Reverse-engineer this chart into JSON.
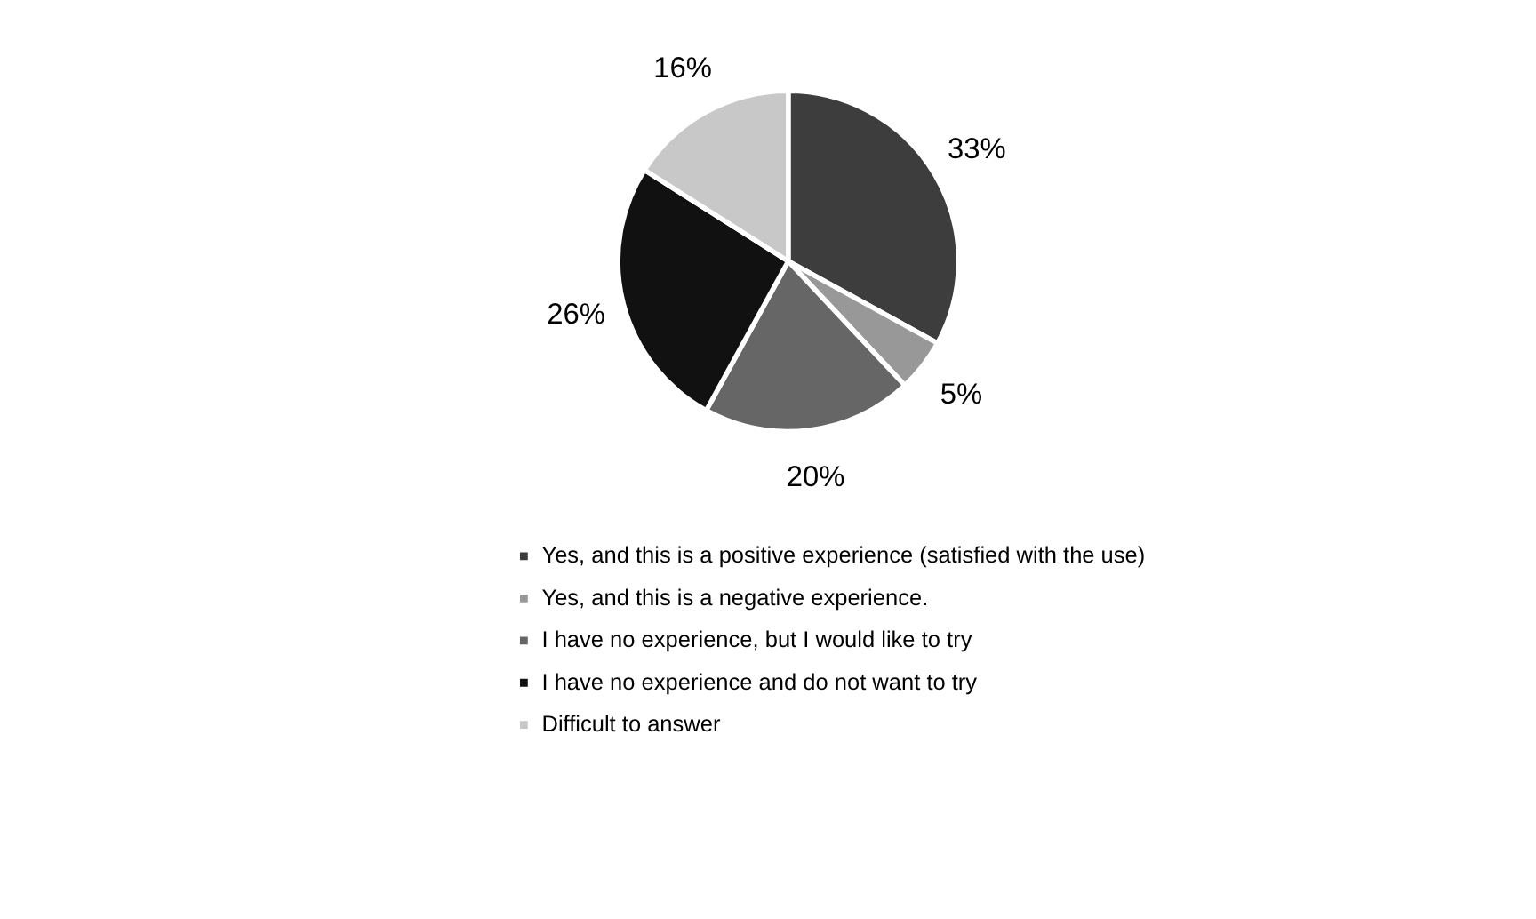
{
  "chart_data": {
    "type": "pie",
    "categories": [
      "Yes, and this is a positive experience (satisfied with the use)",
      "Yes, and this is a negative experience.",
      "I have no experience, but I would like to try",
      "I have no experience and do not want to try",
      "Difficult to answer"
    ],
    "values": [
      33,
      5,
      20,
      26,
      16
    ],
    "value_labels": [
      "33%",
      "5%",
      "20%",
      "26%",
      "16%"
    ],
    "colors": [
      "#3d3d3d",
      "#989898",
      "#666666",
      "#111111",
      "#c8c8c8"
    ],
    "legend": "bottom"
  }
}
